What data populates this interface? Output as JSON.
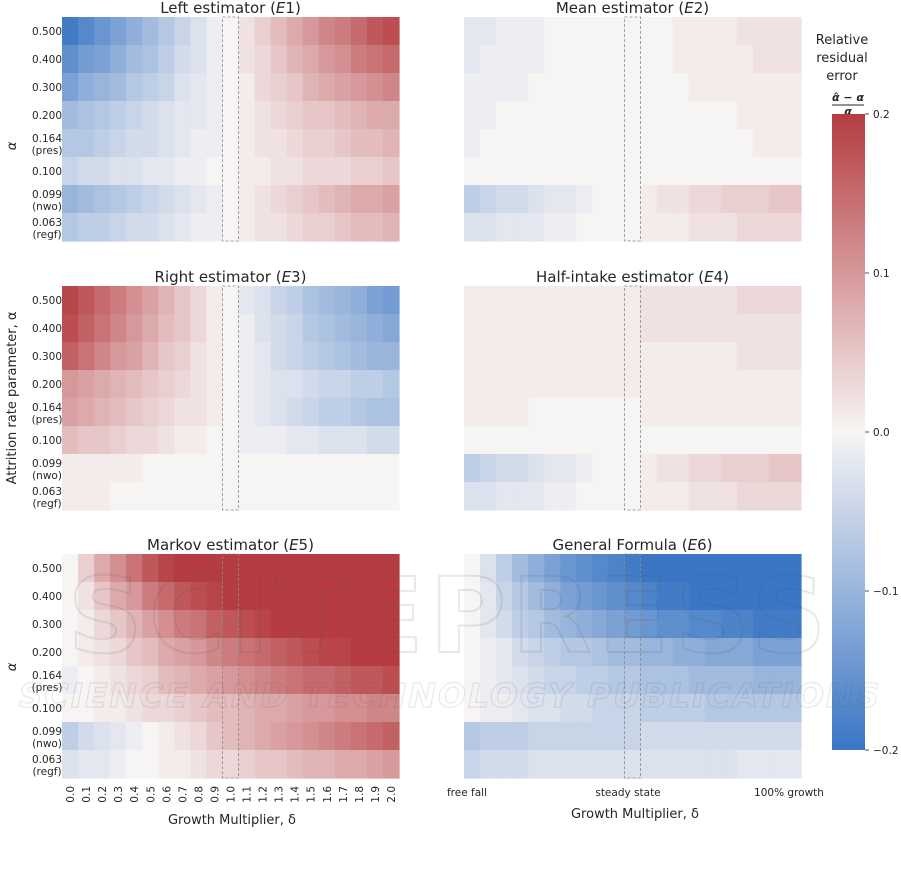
{
  "colorbar": {
    "title_line1": "Relative",
    "title_line2": "residual",
    "title_line3": "error",
    "formula_num": "α̂ − α",
    "formula_den": "α",
    "ticks": [
      "0.2",
      "0.1",
      "0.0",
      "−0.1",
      "−0.2"
    ],
    "tick_values": [
      0.2,
      0.1,
      0.0,
      -0.1,
      -0.2
    ],
    "range": [
      -0.2,
      0.2
    ],
    "colors": {
      "low": "#3a76c4",
      "mid": "#f7f4f4",
      "high": "#b53c40"
    }
  },
  "y_axis": {
    "short_label": "α",
    "long_label": "Attrition rate parameter, α",
    "tick_labels": [
      [
        "0.500"
      ],
      [
        "0.400"
      ],
      [
        "0.300"
      ],
      [
        "0.200"
      ],
      [
        "0.164",
        "(pres)"
      ],
      [
        "0.100"
      ],
      [
        "0.099",
        "(nwo)"
      ],
      [
        "0.063",
        "(regf)"
      ]
    ]
  },
  "x_axis": {
    "label": "Growth Multiplier, δ",
    "left_ticks": [
      "0.0",
      "0.1",
      "0.2",
      "0.3",
      "0.4",
      "0.5",
      "0.6",
      "0.7",
      "0.8",
      "0.9",
      "1.0",
      "1.1",
      "1.2",
      "1.3",
      "1.4",
      "1.5",
      "1.6",
      "1.7",
      "1.8",
      "1.9",
      "2.0"
    ],
    "right_ticks": {
      "free_fall": "free fall",
      "steady_state": "steady state",
      "full_growth": "100% growth"
    }
  },
  "watermark": {
    "big": "SCITEPRESS",
    "small": "SCIENCE AND TECHNOLOGY PUBLICATIONS"
  },
  "chart_data": [
    {
      "type": "heatmap",
      "title": "Left estimator (E1)",
      "title_main": "Left estimator (",
      "title_italic": "E",
      "title_sub": "1)",
      "rows": [
        [
          -0.19,
          -0.17,
          -0.15,
          -0.13,
          -0.11,
          -0.09,
          -0.07,
          -0.05,
          -0.03,
          -0.01,
          0,
          0.02,
          0.04,
          0.06,
          0.08,
          0.1,
          0.12,
          0.13,
          0.15,
          0.17,
          0.18
        ],
        [
          -0.16,
          -0.14,
          -0.13,
          -0.11,
          -0.09,
          -0.08,
          -0.06,
          -0.04,
          -0.03,
          -0.01,
          0,
          0.02,
          0.03,
          0.05,
          0.07,
          0.08,
          0.1,
          0.11,
          0.13,
          0.14,
          0.15
        ],
        [
          -0.13,
          -0.11,
          -0.1,
          -0.09,
          -0.07,
          -0.06,
          -0.05,
          -0.03,
          -0.02,
          -0.01,
          0,
          0.01,
          0.03,
          0.04,
          0.05,
          0.07,
          0.08,
          0.09,
          0.1,
          0.11,
          0.12
        ],
        [
          -0.09,
          -0.08,
          -0.07,
          -0.06,
          -0.05,
          -0.04,
          -0.03,
          -0.02,
          -0.02,
          -0.01,
          0,
          0.01,
          0.02,
          0.03,
          0.04,
          0.05,
          0.05,
          0.06,
          0.07,
          0.08,
          0.08
        ],
        [
          -0.07,
          -0.07,
          -0.06,
          -0.05,
          -0.04,
          -0.04,
          -0.03,
          -0.02,
          -0.01,
          -0.01,
          0,
          0.01,
          0.02,
          0.02,
          0.03,
          0.04,
          0.04,
          0.05,
          0.06,
          0.06,
          0.07
        ],
        [
          -0.05,
          -0.04,
          -0.04,
          -0.03,
          -0.03,
          -0.02,
          -0.02,
          -0.01,
          -0.01,
          0,
          0,
          0.01,
          0.01,
          0.02,
          0.02,
          0.03,
          0.03,
          0.03,
          0.04,
          0.04,
          0.05
        ],
        [
          -0.1,
          -0.09,
          -0.08,
          -0.07,
          -0.06,
          -0.05,
          -0.04,
          -0.03,
          -0.02,
          -0.01,
          0,
          0.01,
          0.02,
          0.03,
          0.04,
          0.05,
          0.06,
          0.07,
          0.08,
          0.08,
          0.09
        ],
        [
          -0.07,
          -0.06,
          -0.06,
          -0.05,
          -0.04,
          -0.04,
          -0.03,
          -0.02,
          -0.01,
          -0.01,
          0,
          0.01,
          0.02,
          0.02,
          0.03,
          0.04,
          0.04,
          0.05,
          0.06,
          0.06,
          0.07
        ]
      ]
    },
    {
      "type": "heatmap",
      "title": "Mean estimator (E2)",
      "title_main": "Mean estimator (",
      "title_italic": "E",
      "title_sub": "2)",
      "rows": [
        [
          -0.02,
          -0.02,
          -0.01,
          -0.01,
          -0.01,
          0,
          0,
          0,
          0,
          0,
          0,
          0,
          0,
          0.01,
          0.01,
          0.01,
          0.01,
          0.02,
          0.02,
          0.02,
          0.02
        ],
        [
          -0.02,
          -0.01,
          -0.01,
          -0.01,
          -0.01,
          0,
          0,
          0,
          0,
          0,
          0,
          0,
          0,
          0.01,
          0.01,
          0.01,
          0.01,
          0.01,
          0.02,
          0.02,
          0.02
        ],
        [
          -0.01,
          -0.01,
          -0.01,
          -0.01,
          0,
          0,
          0,
          0,
          0,
          0,
          0,
          0,
          0,
          0,
          0.01,
          0.01,
          0.01,
          0.01,
          0.01,
          0.01,
          0.01
        ],
        [
          -0.01,
          -0.01,
          0,
          0,
          0,
          0,
          0,
          0,
          0,
          0,
          0,
          0,
          0,
          0,
          0,
          0,
          0,
          0.01,
          0.01,
          0.01,
          0.01
        ],
        [
          -0.01,
          0,
          0,
          0,
          0,
          0,
          0,
          0,
          0,
          0,
          0,
          0,
          0,
          0,
          0,
          0,
          0,
          0,
          0.01,
          0.01,
          0.01
        ],
        [
          0,
          0,
          0,
          0,
          0,
          0,
          0,
          0,
          0,
          0,
          0,
          0,
          0,
          0,
          0,
          0,
          0,
          0,
          0,
          0,
          0
        ],
        [
          -0.06,
          -0.05,
          -0.04,
          -0.04,
          -0.03,
          -0.02,
          -0.02,
          -0.01,
          0,
          0,
          0,
          0.01,
          0.02,
          0.02,
          0.03,
          0.03,
          0.04,
          0.04,
          0.04,
          0.05,
          0.05
        ],
        [
          -0.03,
          -0.03,
          -0.02,
          -0.02,
          -0.02,
          -0.01,
          -0.01,
          0,
          0,
          0,
          0,
          0.01,
          0.01,
          0.01,
          0.02,
          0.02,
          0.02,
          0.03,
          0.03,
          0.03,
          0.03
        ]
      ]
    },
    {
      "type": "heatmap",
      "title": "Right estimator (E3)",
      "title_main": "Right estimator (",
      "title_italic": "E",
      "title_sub": "3)",
      "rows": [
        [
          0.19,
          0.17,
          0.15,
          0.13,
          0.11,
          0.09,
          0.07,
          0.05,
          0.03,
          0.01,
          0,
          -0.02,
          -0.03,
          -0.05,
          -0.06,
          -0.08,
          -0.09,
          -0.1,
          -0.11,
          -0.13,
          -0.14
        ],
        [
          0.18,
          0.16,
          0.14,
          0.12,
          0.1,
          0.08,
          0.06,
          0.05,
          0.03,
          0.01,
          0,
          -0.01,
          -0.03,
          -0.04,
          -0.05,
          -0.07,
          -0.08,
          -0.09,
          -0.1,
          -0.11,
          -0.12
        ],
        [
          0.16,
          0.14,
          0.12,
          0.1,
          0.09,
          0.07,
          0.05,
          0.04,
          0.02,
          0.01,
          0,
          -0.01,
          -0.02,
          -0.04,
          -0.05,
          -0.06,
          -0.07,
          -0.08,
          -0.09,
          -0.1,
          -0.1
        ],
        [
          0.1,
          0.09,
          0.08,
          0.07,
          0.06,
          0.05,
          0.04,
          0.03,
          0.02,
          0.01,
          0,
          -0.01,
          -0.02,
          -0.03,
          -0.03,
          -0.04,
          -0.05,
          -0.05,
          -0.06,
          -0.06,
          -0.07
        ],
        [
          0.09,
          0.08,
          0.07,
          0.06,
          0.05,
          0.04,
          0.03,
          0.02,
          0.02,
          0.01,
          0,
          -0.01,
          -0.02,
          -0.03,
          -0.04,
          -0.05,
          -0.06,
          -0.06,
          -0.07,
          -0.08,
          -0.08
        ],
        [
          0.06,
          0.05,
          0.05,
          0.04,
          0.03,
          0.03,
          0.02,
          0.01,
          0.01,
          0,
          0,
          -0.01,
          -0.01,
          -0.01,
          -0.02,
          -0.02,
          -0.03,
          -0.03,
          -0.03,
          -0.04,
          -0.04
        ],
        [
          0.01,
          0.01,
          0.01,
          0.01,
          0.01,
          0,
          0,
          0,
          0,
          0,
          0,
          0,
          0,
          0,
          0,
          0,
          0,
          0,
          0,
          0,
          0
        ],
        [
          0.01,
          0.01,
          0.01,
          0,
          0,
          0,
          0,
          0,
          0,
          0,
          0,
          0,
          0,
          0,
          0,
          0,
          0,
          0,
          0,
          0,
          0
        ]
      ]
    },
    {
      "type": "heatmap",
      "title": "Half-intake estimator (E4)",
      "title_main": "Half-intake estimator (",
      "title_italic": "E",
      "title_sub": "4)",
      "rows": [
        [
          0.01,
          0.01,
          0.01,
          0.01,
          0.01,
          0.01,
          0.01,
          0.01,
          0.01,
          0.01,
          0.01,
          0.02,
          0.02,
          0.02,
          0.02,
          0.02,
          0.02,
          0.03,
          0.03,
          0.03,
          0.03
        ],
        [
          0.01,
          0.01,
          0.01,
          0.01,
          0.01,
          0.01,
          0.01,
          0.01,
          0.01,
          0.01,
          0.01,
          0.02,
          0.02,
          0.02,
          0.02,
          0.02,
          0.02,
          0.02,
          0.02,
          0.02,
          0.02
        ],
        [
          0.01,
          0.01,
          0.01,
          0.01,
          0.01,
          0.01,
          0.01,
          0.01,
          0.01,
          0.01,
          0.01,
          0.01,
          0.01,
          0.01,
          0.01,
          0.01,
          0.01,
          0.02,
          0.02,
          0.02,
          0.02
        ],
        [
          0.01,
          0.01,
          0.01,
          0.01,
          0.01,
          0.01,
          0.01,
          0.01,
          0.01,
          0.01,
          0.01,
          0.01,
          0.01,
          0.01,
          0.01,
          0.01,
          0.01,
          0.01,
          0.01,
          0.01,
          0.01
        ],
        [
          0.01,
          0.01,
          0.01,
          0.01,
          0,
          0,
          0,
          0,
          0,
          0,
          0,
          0.01,
          0.01,
          0.01,
          0.01,
          0.01,
          0.01,
          0.01,
          0.01,
          0.01,
          0.01
        ],
        [
          0,
          0,
          0,
          0,
          0,
          0,
          0,
          0,
          0,
          0,
          0,
          0,
          0,
          0,
          0,
          0,
          0,
          0,
          0,
          0,
          0
        ],
        [
          -0.06,
          -0.05,
          -0.04,
          -0.04,
          -0.03,
          -0.02,
          -0.02,
          -0.01,
          0,
          0,
          0,
          0.01,
          0.02,
          0.02,
          0.03,
          0.03,
          0.04,
          0.04,
          0.04,
          0.05,
          0.05
        ],
        [
          -0.03,
          -0.03,
          -0.02,
          -0.02,
          -0.02,
          -0.01,
          -0.01,
          0,
          0,
          0,
          0,
          0.01,
          0.01,
          0.01,
          0.02,
          0.02,
          0.02,
          0.03,
          0.03,
          0.03,
          0.03
        ]
      ]
    },
    {
      "type": "heatmap",
      "title": "Markov estimator (E5)",
      "title_main": "Markov estimator (",
      "title_italic": "E",
      "title_sub": "5)",
      "rows": [
        [
          0,
          0.04,
          0.08,
          0.11,
          0.14,
          0.17,
          0.19,
          0.2,
          0.2,
          0.2,
          0.2,
          0.2,
          0.2,
          0.2,
          0.2,
          0.2,
          0.2,
          0.2,
          0.2,
          0.2,
          0.2
        ],
        [
          0,
          0.02,
          0.05,
          0.08,
          0.1,
          0.13,
          0.15,
          0.17,
          0.18,
          0.19,
          0.2,
          0.2,
          0.2,
          0.2,
          0.2,
          0.2,
          0.2,
          0.2,
          0.2,
          0.2,
          0.2
        ],
        [
          0,
          0.01,
          0.03,
          0.05,
          0.07,
          0.09,
          0.11,
          0.13,
          0.14,
          0.16,
          0.17,
          0.18,
          0.19,
          0.2,
          0.2,
          0.2,
          0.2,
          0.2,
          0.2,
          0.2,
          0.2
        ],
        [
          0,
          0.01,
          0.02,
          0.03,
          0.05,
          0.06,
          0.08,
          0.09,
          0.1,
          0.12,
          0.13,
          0.14,
          0.15,
          0.16,
          0.17,
          0.18,
          0.19,
          0.19,
          0.2,
          0.2,
          0.2
        ],
        [
          -0.01,
          0,
          0.01,
          0.02,
          0.03,
          0.04,
          0.06,
          0.07,
          0.08,
          0.09,
          0.1,
          0.11,
          0.12,
          0.13,
          0.14,
          0.15,
          0.15,
          0.16,
          0.17,
          0.17,
          0.18
        ],
        [
          0,
          0,
          0.01,
          0.01,
          0.02,
          0.03,
          0.03,
          0.04,
          0.05,
          0.06,
          0.06,
          0.07,
          0.08,
          0.08,
          0.09,
          0.1,
          0.1,
          0.11,
          0.11,
          0.12,
          0.12
        ],
        [
          -0.06,
          -0.04,
          -0.03,
          -0.02,
          -0.01,
          0,
          0.01,
          0.02,
          0.03,
          0.05,
          0.06,
          0.07,
          0.08,
          0.09,
          0.1,
          0.11,
          0.12,
          0.13,
          0.14,
          0.15,
          0.16
        ],
        [
          -0.03,
          -0.02,
          -0.02,
          -0.01,
          0,
          0,
          0.01,
          0.01,
          0.02,
          0.03,
          0.03,
          0.04,
          0.05,
          0.05,
          0.06,
          0.07,
          0.07,
          0.08,
          0.08,
          0.09,
          0.1
        ]
      ]
    },
    {
      "type": "heatmap",
      "title": "General Formula (E6)",
      "title_main": "General Formula (",
      "title_italic": "E",
      "title_sub": "6)",
      "rows": [
        [
          0,
          -0.03,
          -0.06,
          -0.09,
          -0.11,
          -0.13,
          -0.15,
          -0.16,
          -0.17,
          -0.18,
          -0.19,
          -0.2,
          -0.2,
          -0.2,
          -0.2,
          -0.2,
          -0.2,
          -0.2,
          -0.2,
          -0.2,
          -0.2
        ],
        [
          0,
          -0.02,
          -0.05,
          -0.07,
          -0.09,
          -0.11,
          -0.13,
          -0.14,
          -0.15,
          -0.16,
          -0.17,
          -0.18,
          -0.19,
          -0.19,
          -0.2,
          -0.2,
          -0.2,
          -0.2,
          -0.2,
          -0.2,
          -0.2
        ],
        [
          0,
          -0.02,
          -0.04,
          -0.06,
          -0.07,
          -0.09,
          -0.1,
          -0.11,
          -0.12,
          -0.13,
          -0.14,
          -0.15,
          -0.16,
          -0.16,
          -0.17,
          -0.17,
          -0.18,
          -0.18,
          -0.19,
          -0.19,
          -0.19
        ],
        [
          0,
          -0.01,
          -0.02,
          -0.04,
          -0.05,
          -0.06,
          -0.07,
          -0.07,
          -0.08,
          -0.09,
          -0.09,
          -0.1,
          -0.1,
          -0.11,
          -0.11,
          -0.12,
          -0.12,
          -0.12,
          -0.13,
          -0.13,
          -0.13
        ],
        [
          0,
          -0.01,
          -0.02,
          -0.03,
          -0.04,
          -0.05,
          -0.05,
          -0.06,
          -0.06,
          -0.07,
          -0.07,
          -0.08,
          -0.08,
          -0.08,
          -0.09,
          -0.09,
          -0.09,
          -0.09,
          -0.1,
          -0.1,
          -0.1
        ],
        [
          0,
          -0.01,
          -0.01,
          -0.02,
          -0.03,
          -0.03,
          -0.04,
          -0.04,
          -0.05,
          -0.05,
          -0.05,
          -0.06,
          -0.06,
          -0.06,
          -0.06,
          -0.07,
          -0.07,
          -0.07,
          -0.07,
          -0.07,
          -0.07
        ],
        [
          -0.07,
          -0.06,
          -0.06,
          -0.06,
          -0.05,
          -0.05,
          -0.05,
          -0.05,
          -0.05,
          -0.05,
          -0.05,
          -0.04,
          -0.04,
          -0.04,
          -0.04,
          -0.04,
          -0.04,
          -0.04,
          -0.04,
          -0.04,
          -0.04
        ],
        [
          -0.05,
          -0.04,
          -0.04,
          -0.04,
          -0.03,
          -0.03,
          -0.03,
          -0.03,
          -0.03,
          -0.03,
          -0.03,
          -0.03,
          -0.03,
          -0.03,
          -0.03,
          -0.03,
          -0.03,
          -0.02,
          -0.02,
          -0.02,
          -0.02
        ]
      ]
    }
  ]
}
